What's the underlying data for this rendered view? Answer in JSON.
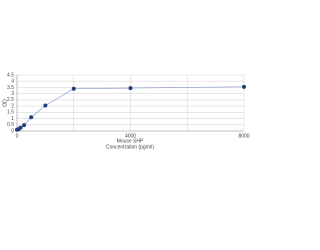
{
  "chart_data": {
    "type": "line",
    "x_label": "Mouse SHP",
    "x_label2": "Concentration (pg/ml)",
    "y_label": "OD",
    "x": [
      0,
      62.5,
      125,
      250,
      500,
      1000,
      2000,
      4000,
      8000
    ],
    "series": [
      {
        "color": "#1f3f7a",
        "line_color": "#8a9ccc",
        "values": [
          0.1,
          0.15,
          0.27,
          0.47,
          1.1,
          2.05,
          3.4,
          3.45,
          3.55
        ]
      }
    ],
    "xlim": [
      0,
      8000
    ],
    "xticks": [
      0,
      4000,
      8000
    ],
    "xminorticks": [
      2000,
      6000
    ],
    "ylim": [
      0,
      4.5
    ],
    "yticks": [
      0,
      0.5,
      1,
      1.5,
      2,
      2.5,
      3,
      3.5,
      4,
      4.5
    ],
    "grid": true
  }
}
